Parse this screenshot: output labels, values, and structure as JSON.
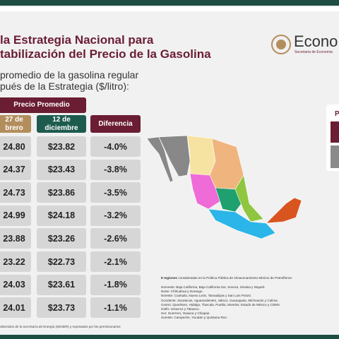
{
  "header": {
    "title_lines": [
      "la Estrategia Nacional para",
      "tabilización del Precio de la Gasolina"
    ],
    "logo_text": "Econo",
    "logo_sub": "Secretaría de Economía"
  },
  "subtitle_lines": [
    "promedio de la gasolina regular",
    "pués de la Estrategia ($/litro):"
  ],
  "table": {
    "group_header": "Precio Promedio",
    "columns": [
      [
        "27 de",
        "brero"
      ],
      [
        "12 de",
        "diciembre"
      ],
      [
        "Diferencia"
      ]
    ],
    "rows": [
      [
        "24.80",
        "$23.82",
        "-4.0%"
      ],
      [
        "24.37",
        "$23.43",
        "-3.8%"
      ],
      [
        "24.73",
        "$23.86",
        "-3.5%"
      ],
      [
        "24.99",
        "$24.18",
        "-3.2%"
      ],
      [
        "23.88",
        "$23.26",
        "-2.6%"
      ],
      [
        "23.22",
        "$22.73",
        "-2.1%"
      ],
      [
        "24.03",
        "$23.61",
        "-1.8%"
      ],
      [
        "24.01",
        "$23.73",
        "-1.1%"
      ]
    ]
  },
  "notes": {
    "intro_bold": "8 regiones",
    "intro": "consideradas en la Política Pública de Almacenamiento Mínimo de Petrolíferos:",
    "lines": [
      "Noroeste: Baja California, Baja California Sur, Sonora, Sinaloa y Nayarit.",
      "Norte: Chihuahua y Durango.",
      "Noreste: Coahuila, Nuevo León, Tamaulipas y San Luis Potosí.",
      "Occidente: Zacatecas, Aguascalientes, Jalisco, Guanajuato, Michoacán y Colima.",
      "Centro: Querétaro, Hidalgo, Tlaxcala, Puebla, Morelos, Estado de México y CDMX.",
      "Golfo: Veracruz y Tabasco.",
      "Sur: Guerrero, Oaxaca y Chiapas.",
      "Sureste: Campeche, Yucatán y Quintana Roo."
    ]
  },
  "footer": "obtenidos de la Secretaría de Energía (SENER) y reportados por los permisionarios",
  "side_panel_letter": "P"
}
